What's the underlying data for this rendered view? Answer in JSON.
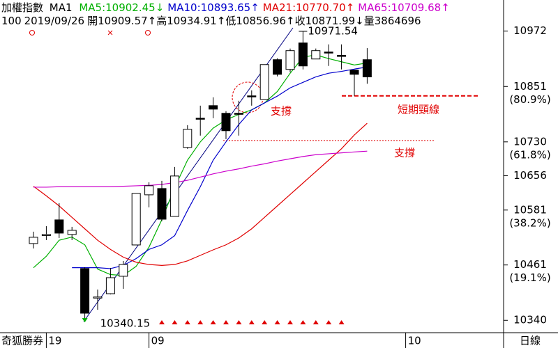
{
  "chart_data": {
    "type": "candlestick",
    "title": "加權指數",
    "subtitle": "MA1",
    "info": [
      "100",
      "2019/09/26",
      "開10909.57↑",
      "高10934.91↑",
      "低10856.96↑",
      "收10871.99↓",
      "量3864696"
    ],
    "brand": "奇狐勝券",
    "period": "日線",
    "categories": [
      null,
      "19",
      null,
      null,
      null,
      null,
      null,
      null,
      null,
      "09",
      null,
      null,
      null,
      null,
      null,
      null,
      null,
      null,
      null,
      null,
      null,
      null,
      null,
      null,
      null,
      null,
      null,
      null,
      null,
      "10",
      null,
      null,
      null,
      null,
      null,
      null,
      null
    ],
    "ohlc": {
      "open": [
        10507.8,
        10527.6,
        10559.5,
        10527.6,
        10453,
        10389.1,
        10398.2,
        10436.3,
        10504.7,
        10614.3,
        10628,
        10567.1,
        10717.8,
        10781.7,
        10809.1,
        10792.4,
        10792.4,
        10830.5,
        10822.8,
        10909.6,
        10888.3,
        10946.1,
        10911.1,
        10926.3,
        10919,
        10886.8,
        10909.57,
        null,
        null,
        null,
        null,
        null,
        null,
        null,
        null,
        null,
        null
      ],
      "high": [
        10533.7,
        10545.8,
        10596.1,
        10544.3,
        10456,
        10407.3,
        10454.5,
        10469.7,
        10617.4,
        10641.7,
        10644.8,
        10675.2,
        10766.5,
        10809.1,
        10827.4,
        10797,
        10819.8,
        10842.6,
        10898.9,
        10912.6,
        10934,
        10971.54,
        10934,
        10943,
        10943,
        10886.8,
        10934.91,
        null,
        null,
        null,
        null,
        null,
        null,
        null,
        null,
        null,
        null
      ],
      "low": [
        10497.1,
        10515.4,
        10520,
        10515.4,
        10340.15,
        10363.2,
        10396.7,
        10408.9,
        10504.7,
        10586.9,
        10556.5,
        10567.1,
        10714.8,
        10743.7,
        10781.7,
        10736.1,
        10743.7,
        10809.1,
        10822.8,
        10873.1,
        10882.2,
        10888.3,
        10911.1,
        10895.9,
        10888.3,
        10830.5,
        10856.96,
        null,
        null,
        null,
        null,
        null,
        null,
        null,
        null,
        null,
        null
      ],
      "close": [
        10521.5,
        10527.6,
        10530.6,
        10536.7,
        10355.6,
        10391,
        10433.2,
        10462.1,
        10617.4,
        10634.1,
        10561,
        10655.4,
        10757.4,
        10781,
        10801.5,
        10754.4,
        10791,
        10829,
        10898.9,
        10877.6,
        10929.4,
        10895.9,
        10929.4,
        10925,
        10918,
        10877.6,
        10871.99,
        null,
        null,
        null,
        null,
        null,
        null,
        null,
        null,
        null,
        null
      ]
    },
    "colors": {
      "up": "#ffffff",
      "down": "#000000"
    },
    "series": [
      {
        "name": "MA5",
        "legend_suffix": ":10902.45↓",
        "color": "#00b000",
        "values": [
          10455,
          10480,
          10515,
          10522,
          10505,
          10452,
          10440,
          10438,
          10458,
          10500,
          10560,
          10630,
          10690,
          10730,
          10760,
          10778,
          10790,
          10800,
          10815,
          10840,
          10880,
          10915,
          10920,
          10912,
          10905,
          10898,
          10902.45,
          null,
          null,
          null,
          null,
          null,
          null,
          null,
          null,
          null,
          null
        ]
      },
      {
        "name": "MA10",
        "legend_suffix": ":10893.65↑",
        "color": "#0000cc",
        "values": [
          null,
          null,
          null,
          10455,
          10455,
          10455,
          10453,
          10460,
          10475,
          10495,
          10505,
          10525,
          10580,
          10632,
          10690,
          10730,
          10768,
          10800,
          10815,
          10830,
          10848,
          10860,
          10872,
          10880,
          10884,
          10889,
          10893.65,
          null,
          null,
          null,
          null,
          null,
          null,
          null,
          null,
          null,
          null
        ]
      },
      {
        "name": "MA21",
        "legend_suffix": ":10770.70↑",
        "color": "#e00000",
        "values": [
          10633,
          10612,
          10590,
          10565,
          10540,
          10515,
          10495,
          10478,
          10467,
          10462,
          10460,
          10462,
          10470,
          10482,
          10494,
          10505,
          10520,
          10540,
          10565,
          10590,
          10615,
          10640,
          10665,
          10690,
          10715,
          10745,
          10770.7,
          null,
          null,
          null,
          null,
          null,
          null,
          null,
          null,
          null,
          null
        ]
      },
      {
        "name": "MA65",
        "legend_suffix": ":10709.68↑",
        "color": "#cc00cc",
        "values": [
          10631,
          10631,
          10632,
          10632,
          10632,
          10632,
          10632,
          10633,
          10634,
          10635,
          10637,
          10641,
          10646,
          10653,
          10660,
          10666,
          10671,
          10677,
          10682,
          10688,
          10693,
          10698,
          10702,
          10704,
          10706,
          10708,
          10709.68,
          null,
          null,
          null,
          null,
          null,
          null,
          null,
          null,
          null,
          null
        ]
      }
    ],
    "ylim": [
      10313,
      11040
    ],
    "yticks": [
      10340,
      10461,
      10581,
      10656,
      10730,
      10851,
      10972
    ],
    "fib_levels": [
      {
        "value": 10461,
        "label": "(19.1%)"
      },
      {
        "value": 10581,
        "label": "(38.2%)"
      },
      {
        "value": 10730,
        "label": "(61.8%)"
      },
      {
        "value": 10851,
        "label": "(80.9%)"
      }
    ],
    "extremes": {
      "high": 10971.54,
      "low": 10340.15
    },
    "reference_lines": [
      {
        "value": 10830.5,
        "color": "#e00000"
      },
      {
        "value": 10733,
        "color": "#e00000"
      }
    ],
    "annotations": [
      "支撐",
      "短期頸線",
      "支撐"
    ]
  }
}
